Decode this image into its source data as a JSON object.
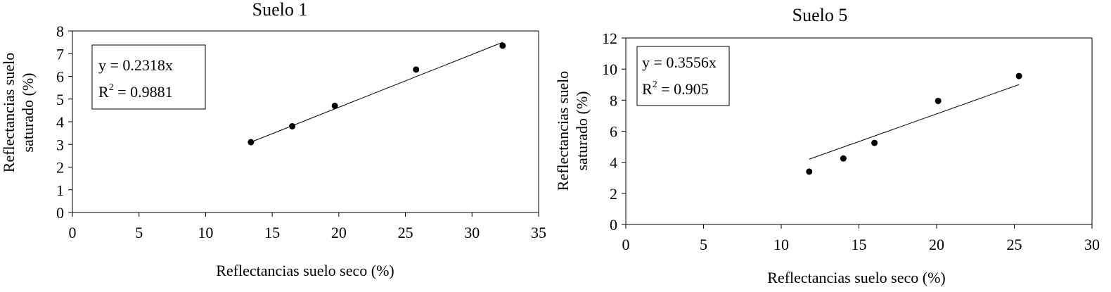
{
  "chart_data": [
    {
      "type": "scatter",
      "title": "Suelo 1",
      "xlabel": "Reflectancias suelo seco (%)",
      "ylabel": [
        "Reflectancias suelo",
        "saturado (%)"
      ],
      "xlim": [
        0,
        35
      ],
      "ylim": [
        0,
        8
      ],
      "xticks": [
        "0",
        "5",
        "10",
        "15",
        "20",
        "25",
        "30",
        "35"
      ],
      "yticks": [
        "0",
        "1",
        "2",
        "3",
        "4",
        "5",
        "6",
        "7",
        "8"
      ],
      "points": [
        {
          "x": 13.4,
          "y": 3.1
        },
        {
          "x": 16.5,
          "y": 3.8
        },
        {
          "x": 19.7,
          "y": 4.7
        },
        {
          "x": 25.8,
          "y": 6.3
        },
        {
          "x": 32.3,
          "y": 7.35
        }
      ],
      "trendline": {
        "x1": 13.4,
        "y1": 3.1,
        "x2": 32.3,
        "y2": 7.5
      },
      "equation": "y = 0.2318x",
      "r2_prefix": "R",
      "r2_sup": "2",
      "r2_value": " = 0.9881",
      "grid": false
    },
    {
      "type": "scatter",
      "title": "Suelo 5",
      "xlabel": "Reflectancias suelo seco (%)",
      "ylabel": [
        "Reflectancias suelo",
        "saturado (%)"
      ],
      "xlim": [
        0,
        30
      ],
      "ylim": [
        0,
        12
      ],
      "xticks": [
        "0",
        "5",
        "10",
        "15",
        "20",
        "25",
        "30"
      ],
      "yticks": [
        "0",
        "2",
        "4",
        "6",
        "8",
        "10",
        "12"
      ],
      "points": [
        {
          "x": 11.8,
          "y": 3.4
        },
        {
          "x": 14.0,
          "y": 4.25
        },
        {
          "x": 16.0,
          "y": 5.25
        },
        {
          "x": 20.1,
          "y": 7.95
        },
        {
          "x": 25.3,
          "y": 9.55
        }
      ],
      "trendline": {
        "x1": 11.8,
        "y1": 4.2,
        "x2": 25.3,
        "y2": 9.0
      },
      "equation": "y = 0.3556x",
      "r2_prefix": "R",
      "r2_sup": "2",
      "r2_value": " = 0.905",
      "grid": false
    }
  ]
}
